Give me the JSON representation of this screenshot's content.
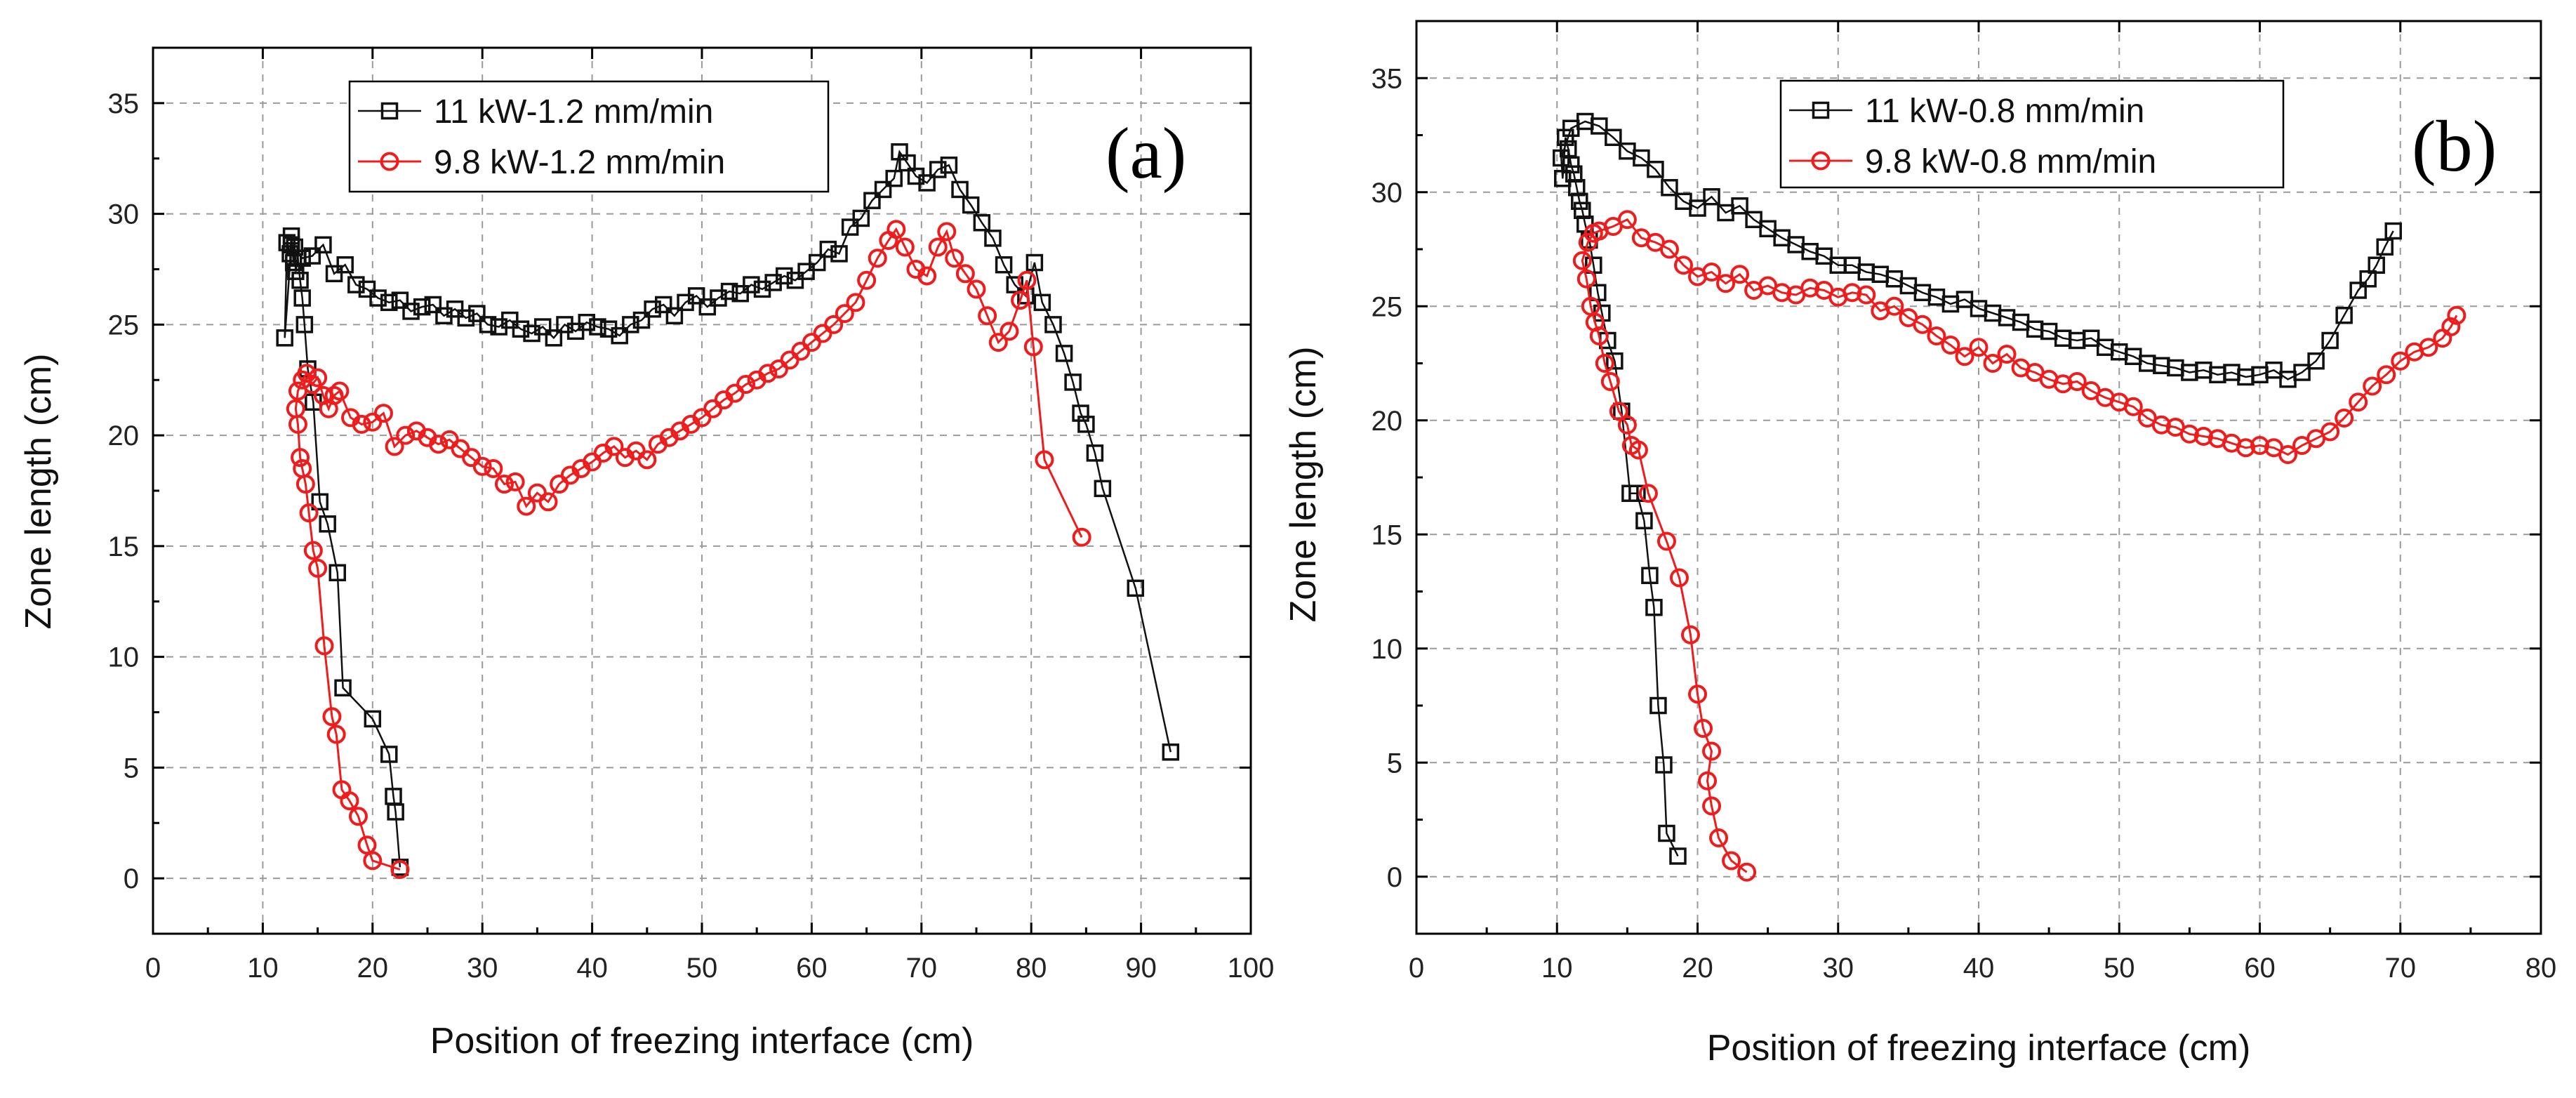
{
  "chart_data": [
    {
      "type": "scatter",
      "panel_label": "(a)",
      "xlabel": "Position of freezing interface (cm)",
      "ylabel": "Zone length (cm)",
      "xlim": [
        0,
        100
      ],
      "ylim": [
        -2.5,
        37.5
      ],
      "xticks": [
        0,
        10,
        20,
        30,
        40,
        50,
        60,
        70,
        80,
        90,
        100
      ],
      "yticks": [
        0,
        5,
        10,
        15,
        20,
        25,
        30,
        35
      ],
      "grid": true,
      "legend_position": "top-center",
      "series": [
        {
          "name": "11 kW-1.2 mm/min",
          "marker": "square",
          "color": "#111111",
          "x": [
            22.5,
            22.1,
            21.9,
            21.5,
            20.0,
            17.3,
            16.8,
            15.9,
            15.2,
            14.6,
            14.1,
            13.8,
            13.6,
            13.4,
            13.2,
            13.0,
            12.9,
            12.8,
            12.6,
            12.5,
            12.2,
            12.0,
            12.6,
            13.6,
            14.5,
            15.5,
            16.5,
            17.5,
            18.5,
            19.5,
            20.5,
            21.5,
            22.5,
            23.5,
            24.5,
            25.5,
            26.5,
            27.5,
            28.5,
            29.5,
            30.5,
            31.5,
            32.5,
            33.5,
            34.5,
            35.5,
            36.5,
            37.5,
            38.5,
            39.5,
            40.5,
            41.5,
            42.5,
            43.5,
            44.5,
            45.5,
            46.5,
            47.5,
            48.5,
            49.5,
            50.5,
            51.5,
            52.5,
            53.5,
            54.5,
            55.5,
            56.5,
            57.5,
            58.5,
            59.5,
            60.5,
            61.5,
            62.5,
            63.5,
            64.5,
            65.5,
            66.5,
            67.5,
            68.0,
            68.7,
            69.5,
            70.5,
            71.5,
            72.5,
            73.5,
            74.5,
            75.5,
            76.5,
            77.5,
            78.5,
            79.5,
            80.3,
            81.0,
            82.0,
            83.0,
            83.8,
            84.5,
            85.0,
            85.8,
            86.5,
            89.5,
            92.7
          ],
          "y": [
            0.5,
            3.0,
            3.7,
            5.6,
            7.2,
            8.6,
            13.8,
            16.0,
            17.0,
            21.5,
            23.0,
            25.0,
            26.2,
            27.0,
            28.0,
            27.4,
            28.5,
            27.8,
            29.0,
            28.2,
            28.7,
            24.4,
            28.6,
            28.0,
            28.1,
            28.6,
            27.3,
            27.7,
            26.8,
            26.6,
            26.2,
            26.0,
            26.1,
            25.6,
            25.8,
            25.9,
            25.4,
            25.7,
            25.3,
            25.5,
            25.0,
            24.9,
            25.2,
            24.8,
            24.6,
            24.9,
            24.4,
            25.0,
            24.7,
            25.1,
            24.9,
            24.8,
            24.5,
            25.0,
            25.2,
            25.7,
            25.9,
            25.4,
            26.0,
            26.3,
            25.8,
            26.2,
            26.5,
            26.4,
            26.8,
            26.6,
            26.9,
            27.2,
            27.0,
            27.4,
            27.8,
            28.4,
            28.2,
            29.4,
            29.8,
            30.6,
            31.1,
            31.6,
            32.8,
            32.3,
            31.7,
            31.4,
            32.0,
            32.2,
            31.1,
            30.4,
            29.6,
            28.9,
            27.7,
            26.8,
            26.3,
            27.8,
            26.0,
            25.0,
            23.7,
            22.4,
            21.0,
            20.5,
            19.2,
            17.6,
            13.1,
            5.7
          ]
        },
        {
          "name": "9.8 kW-1.2 mm/min",
          "marker": "circle",
          "color": "#ee1c1c",
          "x": [
            22.5,
            20.0,
            19.5,
            18.7,
            17.9,
            17.2,
            16.7,
            16.3,
            15.6,
            15.0,
            14.6,
            14.2,
            13.9,
            13.6,
            13.4,
            13.2,
            13.0,
            13.2,
            13.6,
            14.0,
            14.5,
            15.0,
            15.5,
            16.0,
            16.5,
            17.0,
            18.0,
            19.0,
            20.0,
            21.0,
            22.0,
            23.0,
            24.0,
            25.0,
            26.0,
            27.0,
            28.0,
            29.0,
            30.0,
            31.0,
            32.0,
            33.0,
            34.0,
            35.0,
            36.0,
            37.0,
            38.0,
            39.0,
            40.0,
            41.0,
            42.0,
            43.0,
            44.0,
            45.0,
            46.0,
            47.0,
            48.0,
            49.0,
            50.0,
            51.0,
            52.0,
            53.0,
            54.0,
            55.0,
            56.0,
            57.0,
            58.0,
            59.0,
            60.0,
            61.0,
            62.0,
            63.0,
            64.0,
            65.0,
            66.0,
            67.0,
            67.7,
            68.5,
            69.5,
            70.5,
            71.5,
            72.3,
            73.0,
            74.0,
            75.0,
            76.0,
            77.0,
            78.0,
            79.0,
            79.6,
            80.2,
            81.2,
            84.6
          ],
          "y": [
            0.4,
            0.8,
            1.5,
            2.8,
            3.5,
            4.0,
            6.5,
            7.3,
            10.5,
            14.0,
            14.8,
            16.5,
            17.8,
            18.5,
            19.0,
            20.5,
            21.2,
            22.0,
            22.5,
            22.8,
            22.3,
            22.6,
            21.8,
            21.2,
            21.8,
            22.0,
            20.8,
            20.5,
            20.6,
            21.0,
            19.5,
            20.0,
            20.2,
            19.9,
            19.6,
            19.8,
            19.4,
            19.0,
            18.6,
            18.5,
            17.8,
            17.9,
            16.8,
            17.4,
            17.0,
            17.8,
            18.2,
            18.5,
            18.8,
            19.2,
            19.5,
            19.0,
            19.3,
            18.9,
            19.6,
            19.9,
            20.2,
            20.5,
            20.8,
            21.2,
            21.6,
            21.9,
            22.3,
            22.5,
            22.8,
            23.0,
            23.4,
            23.8,
            24.2,
            24.6,
            25.0,
            25.5,
            26.0,
            27.0,
            28.0,
            28.8,
            29.3,
            28.5,
            27.5,
            27.2,
            28.5,
            29.2,
            28.0,
            27.3,
            26.6,
            25.4,
            24.2,
            24.7,
            26.1,
            27.0,
            24.0,
            18.9,
            15.4
          ]
        }
      ]
    },
    {
      "type": "scatter",
      "panel_label": "(b)",
      "xlabel": "Position of freezing interface (cm)",
      "ylabel": "Zone length (cm)",
      "xlim": [
        0,
        80
      ],
      "ylim": [
        -2.5,
        37.5
      ],
      "xticks": [
        0,
        10,
        20,
        30,
        40,
        50,
        60,
        70,
        80
      ],
      "yticks": [
        0,
        5,
        10,
        15,
        20,
        25,
        30,
        35
      ],
      "grid": true,
      "legend_position": "top-center",
      "series": [
        {
          "name": "11 kW-0.8 mm/min",
          "marker": "square",
          "color": "#111111",
          "x": [
            18.6,
            17.8,
            17.6,
            17.2,
            16.9,
            16.6,
            16.2,
            15.7,
            15.2,
            14.6,
            14.1,
            13.6,
            13.2,
            12.9,
            12.6,
            12.3,
            12.0,
            11.8,
            11.6,
            11.4,
            11.2,
            11.0,
            10.8,
            10.6,
            10.4,
            10.3,
            11.0,
            12.0,
            13.0,
            14.0,
            15.0,
            16.0,
            17.0,
            18.0,
            19.0,
            20.0,
            21.0,
            22.0,
            23.0,
            24.0,
            25.0,
            26.0,
            27.0,
            28.0,
            29.0,
            30.0,
            31.0,
            32.0,
            33.0,
            34.0,
            35.0,
            36.0,
            37.0,
            38.0,
            39.0,
            40.0,
            41.0,
            42.0,
            43.0,
            44.0,
            45.0,
            46.0,
            47.0,
            48.0,
            49.0,
            50.0,
            51.0,
            52.0,
            53.0,
            54.0,
            55.0,
            56.0,
            57.0,
            58.0,
            59.0,
            60.0,
            61.0,
            62.0,
            63.0,
            64.0,
            65.0,
            66.0,
            67.0,
            67.7,
            68.3,
            68.9,
            69.5
          ],
          "y": [
            0.9,
            1.9,
            4.9,
            7.5,
            11.8,
            13.2,
            15.6,
            16.8,
            16.8,
            20.4,
            22.6,
            23.5,
            24.7,
            25.6,
            26.8,
            27.9,
            28.6,
            29.2,
            29.6,
            30.2,
            30.8,
            31.2,
            31.9,
            32.4,
            30.6,
            31.5,
            32.8,
            33.1,
            32.9,
            32.4,
            31.8,
            31.5,
            31.0,
            30.2,
            29.6,
            29.3,
            29.8,
            29.1,
            29.4,
            28.8,
            28.4,
            28.0,
            27.7,
            27.4,
            27.2,
            26.8,
            26.8,
            26.5,
            26.4,
            26.2,
            25.9,
            25.6,
            25.4,
            25.1,
            25.3,
            24.9,
            24.7,
            24.5,
            24.3,
            24.0,
            23.9,
            23.6,
            23.5,
            23.6,
            23.2,
            23.0,
            22.8,
            22.5,
            22.4,
            22.3,
            22.1,
            22.2,
            22.0,
            22.1,
            21.9,
            22.0,
            22.2,
            21.8,
            22.1,
            22.6,
            23.5,
            24.6,
            25.7,
            26.2,
            26.8,
            27.6,
            28.3
          ]
        },
        {
          "name": "9.8 kW-0.8 mm/min",
          "marker": "circle",
          "color": "#ee1c1c",
          "x": [
            23.5,
            22.4,
            21.5,
            21.0,
            20.7,
            21.0,
            20.4,
            20.0,
            19.5,
            18.7,
            17.8,
            16.5,
            15.8,
            15.3,
            15.0,
            14.4,
            13.8,
            13.4,
            13.0,
            12.7,
            12.4,
            12.1,
            11.8,
            12.2,
            12.6,
            13.0,
            14.0,
            15.0,
            16.0,
            17.0,
            18.0,
            19.0,
            20.0,
            21.0,
            22.0,
            23.0,
            24.0,
            25.0,
            26.0,
            27.0,
            28.0,
            29.0,
            30.0,
            31.0,
            32.0,
            33.0,
            34.0,
            35.0,
            36.0,
            37.0,
            38.0,
            39.0,
            40.0,
            41.0,
            42.0,
            43.0,
            44.0,
            45.0,
            46.0,
            47.0,
            48.0,
            49.0,
            50.0,
            51.0,
            52.0,
            53.0,
            54.0,
            55.0,
            56.0,
            57.0,
            58.0,
            59.0,
            60.0,
            61.0,
            62.0,
            63.0,
            64.0,
            65.0,
            66.0,
            67.0,
            68.0,
            69.0,
            70.0,
            71.0,
            72.0,
            73.0,
            73.6,
            74.0
          ],
          "y": [
            0.2,
            0.7,
            1.7,
            3.1,
            4.2,
            5.5,
            6.5,
            8.0,
            10.6,
            13.1,
            14.7,
            16.8,
            18.7,
            18.9,
            19.8,
            20.4,
            21.7,
            22.5,
            23.7,
            24.3,
            25.0,
            26.2,
            27.0,
            27.8,
            28.2,
            28.3,
            28.5,
            28.8,
            28.0,
            27.8,
            27.5,
            26.8,
            26.3,
            26.5,
            26.0,
            26.4,
            25.7,
            25.9,
            25.6,
            25.5,
            25.8,
            25.7,
            25.4,
            25.6,
            25.5,
            24.8,
            25.0,
            24.5,
            24.2,
            23.7,
            23.3,
            22.8,
            23.2,
            22.5,
            22.9,
            22.3,
            22.1,
            21.8,
            21.6,
            21.7,
            21.3,
            21.0,
            20.8,
            20.6,
            20.1,
            19.8,
            19.7,
            19.4,
            19.3,
            19.2,
            19.0,
            18.8,
            18.9,
            18.8,
            18.5,
            18.9,
            19.2,
            19.5,
            20.1,
            20.8,
            21.5,
            22.0,
            22.6,
            23.0,
            23.2,
            23.6,
            24.1,
            24.6
          ]
        }
      ]
    }
  ]
}
